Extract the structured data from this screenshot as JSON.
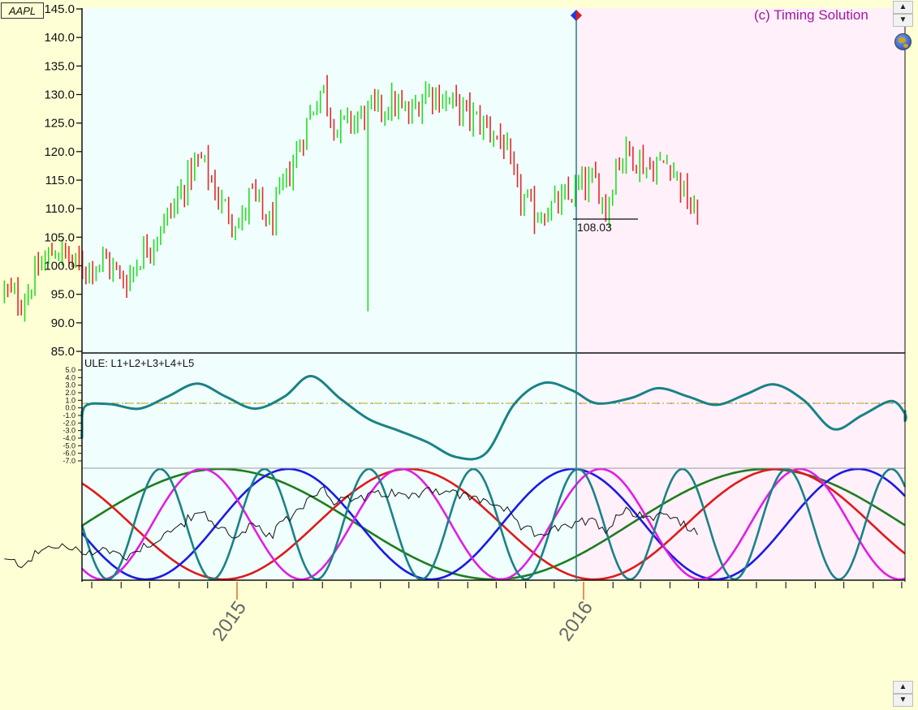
{
  "ticker": "AAPL",
  "copyright": "(c) Timing Solution",
  "price_label": "108.03",
  "oscillator_label": "ULE: L1+L2+L3+L4+L5",
  "colors": {
    "background": "#ffffd6",
    "history_fill": "#f0fffe",
    "projection_fill": "#fff0fa",
    "candle_up": "#22dd22",
    "candle_down": "#e62828",
    "oscillator": "#1a8285",
    "vertical_line": "#1a8285"
  },
  "icons": {
    "scroll_up": "triangle-up-icon",
    "scroll_down": "triangle-down-icon",
    "globe": "globe-icon",
    "marker": "diamond-marker-icon"
  },
  "chart_data": [
    {
      "type": "candlestick",
      "title": "AAPL",
      "ylim": [
        85,
        145
      ],
      "y_ticks": [
        "145.0",
        "140.0",
        "135.0",
        "130.0",
        "125.0",
        "120.0",
        "115.0",
        "110.0",
        "105.0",
        "100.0",
        "95.0",
        "90.0",
        "85.0"
      ],
      "x_ticks": [
        "2015",
        "2016"
      ],
      "last_price": 108.03,
      "price_path": [
        [
          "2014-05-01",
          95.5
        ],
        [
          "2014-05-20",
          93.8
        ],
        [
          "2014-06-10",
          100.5
        ],
        [
          "2014-06-25",
          103.0
        ],
        [
          "2014-07-20",
          99.5
        ],
        [
          "2014-08-15",
          101.0
        ],
        [
          "2014-09-05",
          97.0
        ],
        [
          "2014-09-20",
          101.5
        ],
        [
          "2014-10-10",
          106.0
        ],
        [
          "2014-10-25",
          110.0
        ],
        [
          "2014-11-15",
          117.0
        ],
        [
          "2014-11-25",
          118.5
        ],
        [
          "2014-12-15",
          111.0
        ],
        [
          "2015-01-05",
          107.0
        ],
        [
          "2015-01-15",
          113.0
        ],
        [
          "2015-01-25",
          110.0
        ],
        [
          "2015-02-05",
          107.0
        ],
        [
          "2015-02-15",
          112.0
        ],
        [
          "2015-03-01",
          118.0
        ],
        [
          "2015-03-20",
          127.0
        ],
        [
          "2015-04-01",
          131.5
        ],
        [
          "2015-04-15",
          124.0
        ],
        [
          "2015-05-10",
          126.0
        ],
        [
          "2015-05-30",
          127.5
        ],
        [
          "2015-06-15",
          128.5
        ],
        [
          "2015-07-01",
          126.0
        ],
        [
          "2015-07-20",
          131.0
        ],
        [
          "2015-08-15",
          128.5
        ],
        [
          "2015-09-05",
          126.0
        ],
        [
          "2015-09-25",
          124.0
        ],
        [
          "2015-10-10",
          121.0
        ],
        [
          "2015-10-22",
          113.0
        ],
        [
          "2015-11-10",
          109.0
        ],
        [
          "2015-11-25",
          110.0
        ],
        [
          "2015-12-10",
          111.0
        ],
        [
          "2015-12-28",
          114.0
        ],
        [
          "2016-01-15",
          114.5
        ],
        [
          "2016-01-25",
          109.5
        ],
        [
          "2016-02-05",
          118.5
        ],
        [
          "2016-02-18",
          120.0
        ],
        [
          "2016-03-10",
          117.0
        ],
        [
          "2016-04-01",
          118.5
        ],
        [
          "2016-04-20",
          111.0
        ],
        [
          "2016-04-30",
          108.03
        ]
      ],
      "candle_count": 205,
      "spike_low": 92.0,
      "spike_date": "2015-10-25",
      "spike_at_index": 107
    },
    {
      "type": "line",
      "title": "ULE: L1+L2+L3+L4+L5",
      "ylim": [
        -7.5,
        5.5
      ],
      "y_ticks": [
        "5.0",
        "4.0",
        "3.0",
        "2.0",
        "1.0",
        "0.0",
        "-1.0",
        "-2.0",
        "-3.0",
        "-4.0",
        "-5.0",
        "-6.0",
        "-7.0"
      ],
      "zero_line": 0,
      "values": [
        [
          "2014-05-01",
          -0.4
        ],
        [
          "2014-06-05",
          -3.8
        ],
        [
          "2014-06-25",
          -3.0
        ],
        [
          "2014-07-25",
          0.2
        ],
        [
          "2014-08-20",
          0.5
        ],
        [
          "2014-09-20",
          -0.1
        ],
        [
          "2014-10-20",
          1.5
        ],
        [
          "2014-11-20",
          3.2
        ],
        [
          "2014-12-20",
          1.5
        ],
        [
          "2015-01-20",
          -0.1
        ],
        [
          "2015-02-20",
          1.5
        ],
        [
          "2015-03-20",
          4.2
        ],
        [
          "2015-04-20",
          1.2
        ],
        [
          "2015-05-20",
          -1.5
        ],
        [
          "2015-06-20",
          -3.0
        ],
        [
          "2015-07-20",
          -4.5
        ],
        [
          "2015-08-20",
          -6.5
        ],
        [
          "2015-09-20",
          -6.0
        ],
        [
          "2015-10-20",
          0.5
        ],
        [
          "2015-11-20",
          3.3
        ],
        [
          "2015-12-20",
          2.3
        ],
        [
          "2016-01-15",
          0.6
        ],
        [
          "2016-02-20",
          1.3
        ],
        [
          "2016-03-20",
          2.6
        ],
        [
          "2016-04-20",
          1.5
        ],
        [
          "2016-05-20",
          0.4
        ],
        [
          "2016-06-20",
          1.8
        ],
        [
          "2016-07-20",
          3.1
        ],
        [
          "2016-08-20",
          1.0
        ],
        [
          "2016-09-20",
          -2.8
        ],
        [
          "2016-10-20",
          -1.0
        ],
        [
          "2016-11-20",
          0.9
        ],
        [
          "2016-12-20",
          -0.8
        ],
        [
          "2017-01-20",
          -1.7
        ],
        [
          "2017-02-20",
          -0.5
        ],
        [
          "2017-03-20",
          -0.3
        ]
      ]
    },
    {
      "type": "line",
      "title": "",
      "ylim": [
        -1,
        1
      ],
      "series": [
        {
          "color": "#1e7d1e",
          "period_days": 575,
          "phase_date": "2014-12-15"
        },
        {
          "color": "#e01a1a",
          "period_days": 390,
          "phase_date": "2015-07-01"
        },
        {
          "color": "#1a1ae6",
          "period_days": 300,
          "phase_date": "2014-04-30"
        },
        {
          "color": "#e01ee6",
          "period_days": 210,
          "phase_date": "2014-11-25"
        },
        {
          "color": "#1a8285",
          "period_days": 110,
          "phase_date": "2015-05-20"
        }
      ],
      "overlay_color": "#111111"
    }
  ]
}
